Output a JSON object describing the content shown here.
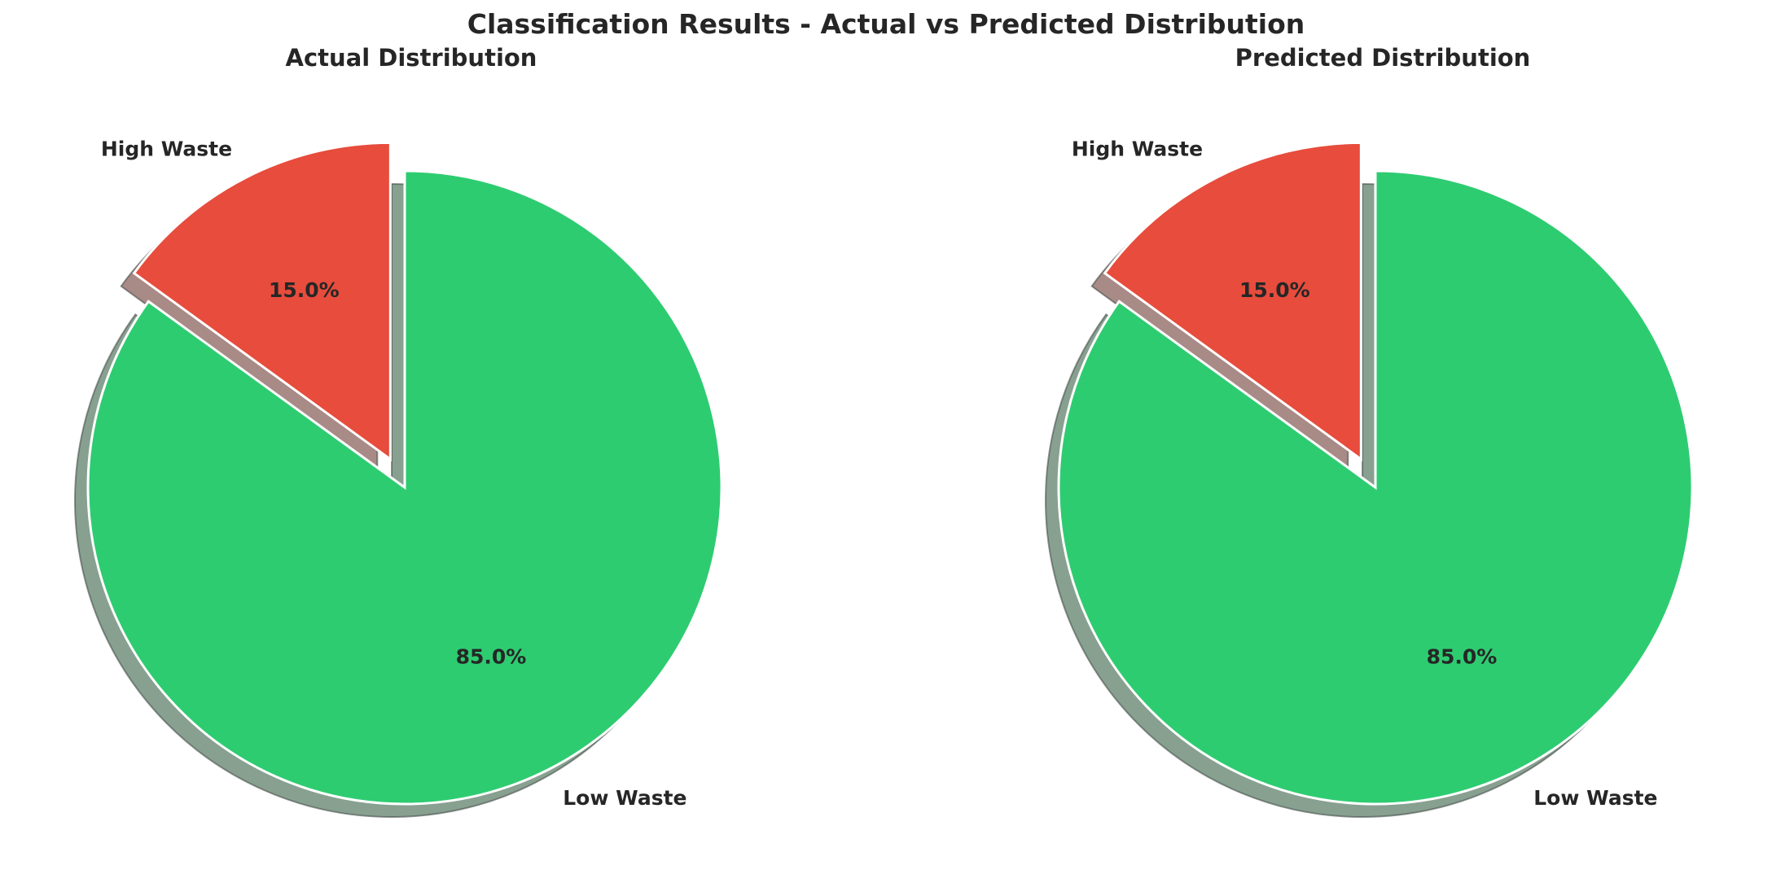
{
  "chart_data": {
    "type": "pie",
    "title": "Classification Results - Actual vs Predicted Distribution",
    "charts": [
      {
        "title": "Actual Distribution",
        "slices": [
          {
            "label": "Low Waste",
            "value": 85.0,
            "pct_label": "85.0%",
            "color": "#2ecc71",
            "exploded": false
          },
          {
            "label": "High Waste",
            "value": 15.0,
            "pct_label": "15.0%",
            "color": "#e74c3c",
            "exploded": true
          }
        ],
        "start_angle_deg": 90,
        "direction": "clockwise",
        "shadow": true
      },
      {
        "title": "Predicted Distribution",
        "slices": [
          {
            "label": "Low Waste",
            "value": 85.0,
            "pct_label": "85.0%",
            "color": "#2ecc71",
            "exploded": false
          },
          {
            "label": "High Waste",
            "value": 15.0,
            "pct_label": "15.0%",
            "color": "#e74c3c",
            "exploded": true
          }
        ],
        "start_angle_deg": 90,
        "direction": "clockwise",
        "shadow": true
      }
    ]
  }
}
